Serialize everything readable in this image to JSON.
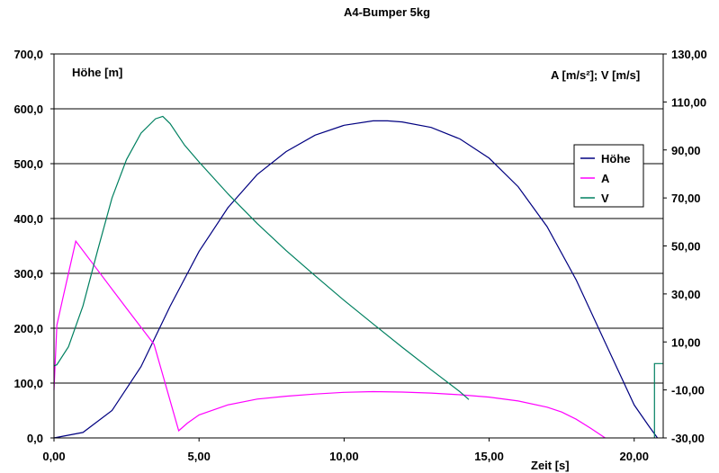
{
  "chart_data": {
    "type": "line",
    "title": "A4-Bumper 5kg",
    "xlabel": "Zeit [s]",
    "ylabel_left": "Höhe [m]",
    "ylabel_right": "A [m/s²]; V [m/s]",
    "xlim": [
      0,
      21
    ],
    "ylim_left": [
      0,
      700
    ],
    "ylim_right": [
      -30,
      130
    ],
    "x_ticks": [
      "0,00",
      "5,00",
      "10,00",
      "15,00",
      "20,00"
    ],
    "x_tick_values": [
      0,
      5,
      10,
      15,
      20
    ],
    "y_left_ticks": [
      "0,0",
      "100,0",
      "200,0",
      "300,0",
      "400,0",
      "500,0",
      "600,0",
      "700,0"
    ],
    "y_left_tick_values": [
      0,
      100,
      200,
      300,
      400,
      500,
      600,
      700
    ],
    "y_right_ticks": [
      "-30,00",
      "-10,00",
      "10,00",
      "30,00",
      "50,00",
      "70,00",
      "90,00",
      "110,00",
      "130,00"
    ],
    "y_right_tick_values": [
      -30,
      -10,
      10,
      30,
      50,
      70,
      90,
      110,
      130
    ],
    "grid": true,
    "legend_position": "right",
    "series": [
      {
        "name": "Höhe",
        "axis": "left",
        "color": "#000080",
        "x": [
          0,
          1,
          2,
          3,
          4,
          5,
          6,
          7,
          8,
          9,
          10,
          11,
          11.5,
          12,
          13,
          14,
          15,
          16,
          17,
          18,
          19,
          20,
          20.5,
          20.8
        ],
        "y": [
          0,
          10,
          50,
          130,
          240,
          340,
          420,
          480,
          522,
          552,
          570,
          578,
          578,
          576,
          566,
          545,
          510,
          458,
          385,
          288,
          174,
          60,
          22,
          0
        ]
      },
      {
        "name": "A",
        "axis": "right",
        "color": "#ff00ff",
        "x": [
          0,
          0.1,
          0.3,
          0.75,
          1.5,
          2.5,
          3.45,
          4.3,
          4.6,
          5,
          6,
          7,
          8,
          9,
          10,
          11,
          12,
          13,
          14,
          15,
          16,
          17,
          17.5,
          18,
          18.5,
          19
        ],
        "y": [
          -10,
          17,
          28,
          52,
          40,
          24,
          9,
          -27,
          -23.8,
          -20.4,
          -16.2,
          -13.8,
          -12.6,
          -11.7,
          -11,
          -10.7,
          -10.9,
          -11.3,
          -12,
          -13,
          -14.6,
          -17.2,
          -19.2,
          -22.2,
          -26,
          -30
        ]
      },
      {
        "name": "V",
        "axis": "right",
        "color": "#008060",
        "x": [
          0,
          0.1,
          0.5,
          1,
          1.5,
          2,
          2.5,
          3,
          3.5,
          3.75,
          4,
          4.5,
          5,
          6,
          7,
          8,
          9,
          10,
          11,
          12,
          13,
          14,
          14.3
        ],
        "y": [
          0,
          0.5,
          8,
          25,
          48,
          70,
          86,
          97,
          103,
          104,
          101,
          92,
          85,
          71.7,
          59.4,
          48.1,
          37.6,
          27.3,
          17.5,
          7.8,
          -1.6,
          -10.8,
          -14
        ]
      },
      {
        "name": "",
        "axis": "right",
        "color": "#008060",
        "x": [
          20.7,
          20.7,
          21
        ],
        "y": [
          -30,
          1,
          1
        ]
      }
    ]
  }
}
